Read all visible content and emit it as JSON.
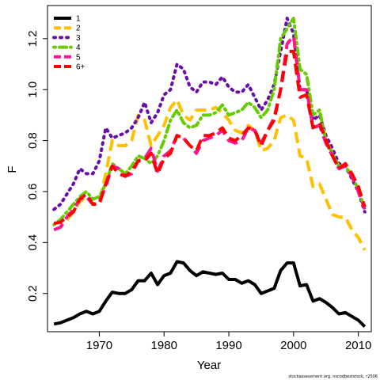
{
  "chart_data": {
    "type": "line",
    "xlabel": "Year",
    "ylabel": "F",
    "xlim": [
      1962,
      2012
    ],
    "ylim": [
      0.05,
      1.33
    ],
    "x_ticks": [
      1970,
      1980,
      1990,
      2000,
      2010
    ],
    "y_ticks": [
      0.2,
      0.4,
      0.6,
      0.8,
      1.0,
      1.2
    ],
    "y_tick_labels": [
      "0.2",
      "0.4",
      "0.6",
      "0.8",
      "1.0",
      "1.2"
    ],
    "legend_position": "top-left",
    "grid": false,
    "x": [
      1963,
      1964,
      1965,
      1966,
      1967,
      1968,
      1969,
      1970,
      1971,
      1972,
      1973,
      1974,
      1975,
      1976,
      1977,
      1978,
      1979,
      1980,
      1981,
      1982,
      1983,
      1984,
      1985,
      1986,
      1987,
      1988,
      1989,
      1990,
      1991,
      1992,
      1993,
      1994,
      1995,
      1996,
      1997,
      1998,
      1999,
      2000,
      2001,
      2002,
      2003,
      2004,
      2005,
      2006,
      2007,
      2008,
      2009,
      2010,
      2011
    ],
    "series": [
      {
        "name": "1",
        "color": "#000000",
        "dash": "solid",
        "values": [
          0.08,
          0.085,
          0.095,
          0.105,
          0.12,
          0.13,
          0.12,
          0.13,
          0.17,
          0.205,
          0.2,
          0.2,
          0.215,
          0.25,
          0.25,
          0.28,
          0.235,
          0.27,
          0.28,
          0.325,
          0.32,
          0.29,
          0.27,
          0.285,
          0.28,
          0.275,
          0.28,
          0.255,
          0.255,
          0.24,
          0.25,
          0.235,
          0.2,
          0.21,
          0.22,
          0.29,
          0.32,
          0.32,
          0.23,
          0.235,
          0.17,
          0.18,
          0.165,
          0.145,
          0.12,
          0.125,
          0.11,
          0.095,
          0.07
        ]
      },
      {
        "name": "2",
        "color": "#ffc000",
        "dash": "long",
        "values": [
          0.45,
          0.46,
          0.49,
          0.52,
          0.56,
          0.58,
          0.55,
          0.56,
          0.67,
          0.8,
          0.78,
          0.78,
          0.8,
          0.9,
          0.88,
          0.78,
          0.82,
          0.86,
          0.93,
          0.96,
          0.9,
          0.88,
          0.92,
          0.92,
          0.92,
          0.93,
          0.91,
          0.88,
          0.84,
          0.83,
          0.86,
          0.84,
          0.76,
          0.77,
          0.8,
          0.89,
          0.9,
          0.88,
          0.74,
          0.73,
          0.62,
          0.63,
          0.57,
          0.51,
          0.5,
          0.5,
          0.45,
          0.42,
          0.37
        ]
      },
      {
        "name": "3",
        "color": "#6a0dad",
        "dash": "dot",
        "values": [
          0.53,
          0.55,
          0.59,
          0.63,
          0.69,
          0.67,
          0.67,
          0.72,
          0.85,
          0.81,
          0.82,
          0.83,
          0.85,
          0.89,
          0.95,
          0.87,
          0.91,
          0.98,
          1.0,
          1.1,
          1.08,
          1.01,
          0.99,
          1.03,
          1.03,
          1.02,
          1.05,
          1.01,
          0.99,
          0.99,
          1.02,
          0.97,
          0.92,
          0.96,
          1.02,
          1.15,
          1.28,
          1.22,
          1.0,
          1.0,
          0.88,
          0.9,
          0.82,
          0.77,
          0.71,
          0.7,
          0.65,
          0.6,
          0.52
        ]
      },
      {
        "name": "4",
        "color": "#66cc00",
        "dash": "dash-dot",
        "values": [
          0.47,
          0.49,
          0.52,
          0.55,
          0.58,
          0.6,
          0.57,
          0.58,
          0.63,
          0.71,
          0.69,
          0.67,
          0.7,
          0.74,
          0.73,
          0.71,
          0.74,
          0.8,
          0.88,
          0.92,
          0.87,
          0.85,
          0.86,
          0.9,
          0.9,
          0.91,
          0.94,
          0.9,
          0.91,
          0.92,
          0.95,
          0.93,
          0.89,
          0.92,
          1.0,
          1.2,
          1.24,
          1.28,
          1.08,
          1.06,
          0.9,
          0.92,
          0.8,
          0.75,
          0.7,
          0.7,
          0.66,
          0.61,
          0.53
        ]
      },
      {
        "name": "5",
        "color": "#ff1493",
        "dash": "long",
        "values": [
          0.45,
          0.46,
          0.5,
          0.53,
          0.57,
          0.58,
          0.55,
          0.56,
          0.62,
          0.7,
          0.69,
          0.66,
          0.67,
          0.72,
          0.73,
          0.77,
          0.68,
          0.74,
          0.76,
          0.82,
          0.81,
          0.78,
          0.75,
          0.8,
          0.81,
          0.82,
          0.84,
          0.8,
          0.79,
          0.8,
          0.85,
          0.84,
          0.79,
          0.84,
          0.89,
          1.0,
          1.18,
          1.21,
          1.0,
          1.0,
          0.85,
          0.86,
          0.79,
          0.74,
          0.69,
          0.7,
          0.66,
          0.6,
          0.53
        ]
      },
      {
        "name": "6+",
        "color": "#ff0000",
        "dash": "long",
        "values": [
          0.475,
          0.48,
          0.5,
          0.52,
          0.57,
          0.59,
          0.55,
          0.55,
          0.63,
          0.7,
          0.67,
          0.66,
          0.68,
          0.72,
          0.72,
          0.75,
          0.67,
          0.73,
          0.75,
          0.82,
          0.81,
          0.78,
          0.76,
          0.82,
          0.82,
          0.83,
          0.85,
          0.81,
          0.8,
          0.82,
          0.85,
          0.84,
          0.78,
          0.84,
          0.88,
          1.0,
          1.15,
          1.15,
          0.97,
          0.98,
          0.85,
          0.87,
          0.8,
          0.74,
          0.69,
          0.71,
          0.67,
          0.62,
          0.54
        ]
      }
    ]
  },
  "footnote": "stockassessment.org, nscodbeststock, r2506"
}
